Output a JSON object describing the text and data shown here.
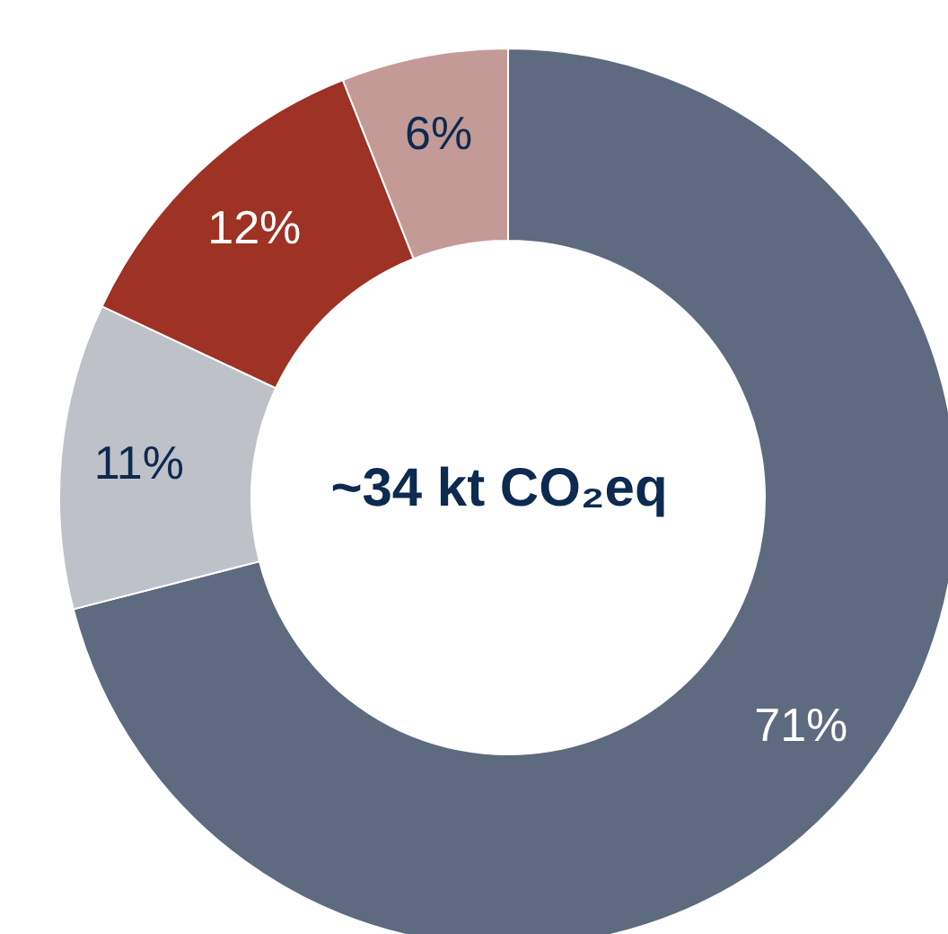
{
  "chart_data": {
    "type": "donut",
    "categories": [
      null,
      null,
      null,
      null
    ],
    "values": [
      71,
      11,
      12,
      6
    ],
    "colors": [
      "#5e6a80",
      "#bfc1c8",
      "#9e3224",
      "#c49a96"
    ],
    "value_labels": [
      "71%",
      "11%",
      "12%",
      "6%"
    ],
    "annotations": [
      "~34 kt CO₂eq"
    ],
    "legend": false
  }
}
